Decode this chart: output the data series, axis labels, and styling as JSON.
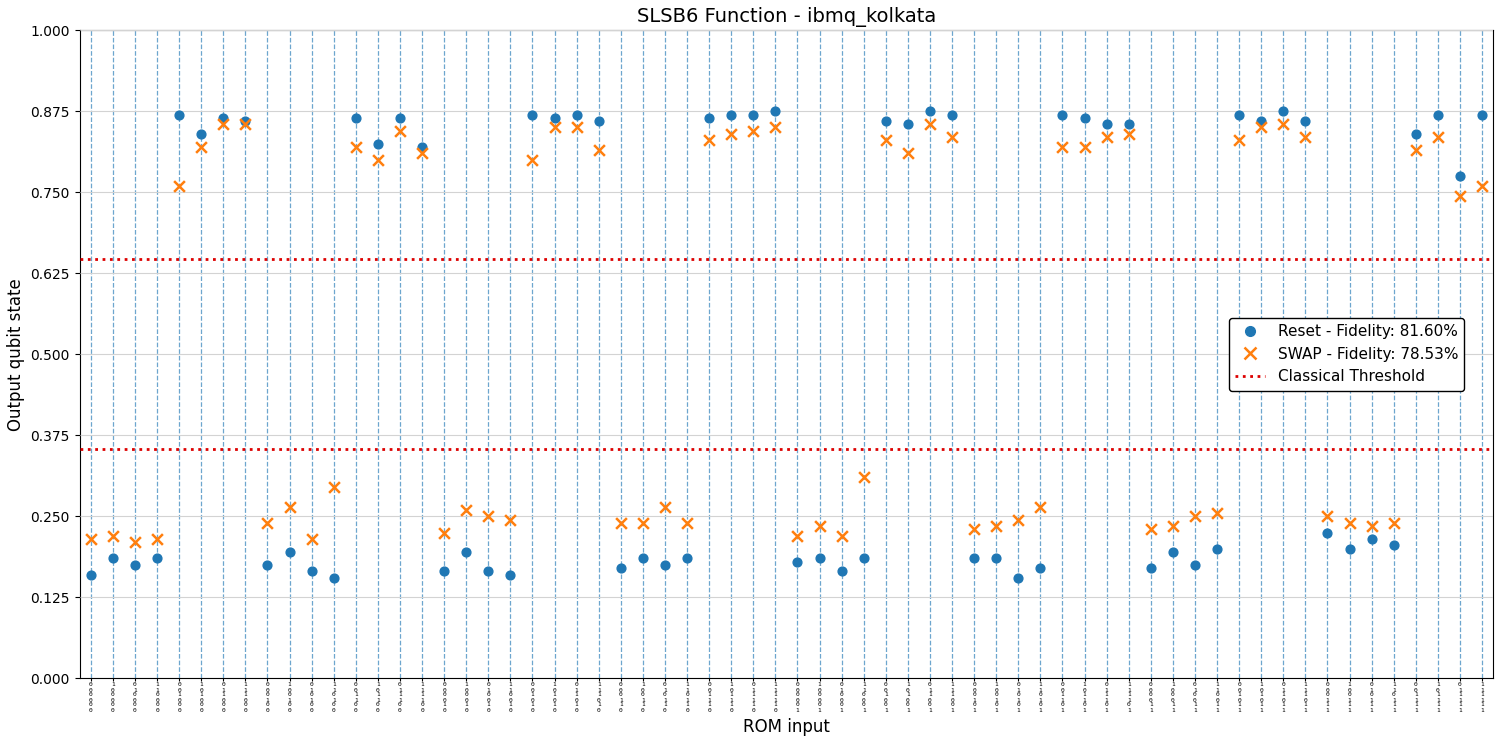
{
  "title": "SLSB6 Function - ibmq_kolkata",
  "xlabel": "ROM input",
  "ylabel": "Output qubit state",
  "threshold_high": 0.6464,
  "threshold_low": 0.3536,
  "reset_fidelity": "81.60%",
  "swap_fidelity": "78.53%",
  "reset_color": "#1f77b4",
  "swap_color": "#ff7f0e",
  "threshold_color": "#dd0000",
  "ylim_min": 0.0,
  "ylim_max": 1.0,
  "yticks": [
    0.0,
    0.125,
    0.25,
    0.375,
    0.5,
    0.625,
    0.75,
    0.875,
    1.0
  ],
  "n_inputs": 64,
  "slsb6_output": [
    0,
    0,
    0,
    0,
    1,
    1,
    1,
    1,
    0,
    0,
    0,
    0,
    1,
    1,
    1,
    1,
    0,
    0,
    0,
    0,
    1,
    1,
    1,
    1,
    0,
    0,
    0,
    0,
    1,
    1,
    1,
    1,
    0,
    0,
    0,
    0,
    1,
    1,
    1,
    1,
    0,
    0,
    0,
    0,
    1,
    1,
    1,
    1,
    0,
    0,
    0,
    0,
    1,
    1,
    1,
    1,
    0,
    0,
    0,
    0,
    1,
    1,
    1,
    1
  ],
  "reset_values": [
    0.16,
    0.185,
    0.175,
    0.185,
    0.87,
    0.84,
    0.865,
    0.86,
    0.175,
    0.195,
    0.165,
    0.155,
    0.865,
    0.825,
    0.865,
    0.82,
    0.165,
    0.195,
    0.165,
    0.16,
    0.87,
    0.865,
    0.87,
    0.86,
    0.17,
    0.185,
    0.175,
    0.185,
    0.865,
    0.87,
    0.87,
    0.875,
    0.18,
    0.185,
    0.165,
    0.185,
    0.86,
    0.855,
    0.875,
    0.87,
    0.185,
    0.185,
    0.155,
    0.17,
    0.87,
    0.865,
    0.855,
    0.855,
    0.17,
    0.195,
    0.175,
    0.2,
    0.87,
    0.86,
    0.875,
    0.86,
    0.225,
    0.2,
    0.215,
    0.205,
    0.84,
    0.87,
    0.775,
    0.87
  ],
  "swap_values": [
    0.215,
    0.22,
    0.21,
    0.215,
    0.76,
    0.82,
    0.855,
    0.855,
    0.24,
    0.265,
    0.215,
    0.295,
    0.82,
    0.8,
    0.845,
    0.81,
    0.225,
    0.26,
    0.25,
    0.245,
    0.8,
    0.85,
    0.85,
    0.815,
    0.24,
    0.24,
    0.265,
    0.24,
    0.83,
    0.84,
    0.845,
    0.85,
    0.22,
    0.235,
    0.22,
    0.31,
    0.83,
    0.81,
    0.855,
    0.835,
    0.23,
    0.235,
    0.245,
    0.265,
    0.82,
    0.82,
    0.835,
    0.84,
    0.23,
    0.235,
    0.25,
    0.255,
    0.83,
    0.85,
    0.855,
    0.835,
    0.25,
    0.24,
    0.235,
    0.24,
    0.815,
    0.835,
    0.745,
    0.76
  ]
}
